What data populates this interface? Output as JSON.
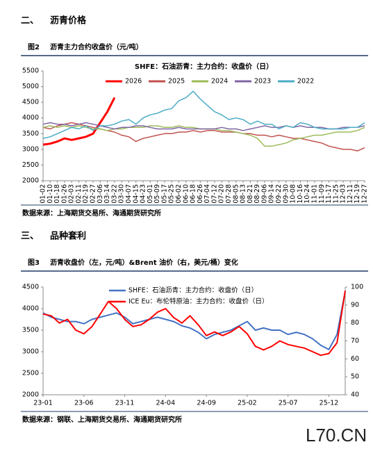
{
  "sections": [
    {
      "number": "二、",
      "title": "沥青价格",
      "figure_no": "图2",
      "figure_title": "沥青主力合约收盘价（元/吨）",
      "source": "数据来源：上海期货交易所、海通期货研究所"
    },
    {
      "number": "三、",
      "title": "品种套利",
      "figure_no": "图3",
      "figure_title": "沥青收盘价（左，元/吨）&Brent 油价（右，美元/桶）变化",
      "source": "数据来源：钢联、上海期货交易所、海通期货研究所"
    }
  ],
  "watermark": "L70.CN",
  "chart_data": [
    {
      "type": "line",
      "title": "SHFE：石油沥青：主力合约：收盘价（日）",
      "categories": [
        "01-02",
        "01-10",
        "01-18",
        "01-26",
        "02-03",
        "02-11",
        "02-19",
        "02-27",
        "03-06",
        "03-14",
        "03-22",
        "03-30",
        "04-07",
        "04-15",
        "04-23",
        "05-01",
        "05-09",
        "05-17",
        "05-25",
        "06-02",
        "06-10",
        "06-18",
        "06-26",
        "07-04",
        "07-12",
        "07-20",
        "07-28",
        "08-05",
        "08-13",
        "08-21",
        "08-29",
        "09-06",
        "09-14",
        "09-22",
        "09-30",
        "10-08",
        "10-16",
        "10-24",
        "11-01",
        "11-09",
        "11-17",
        "11-25",
        "12-03",
        "12-11",
        "12-19",
        "12-27"
      ],
      "ylim": [
        2000,
        5500
      ],
      "yticks": [
        2000,
        2500,
        3000,
        3500,
        4000,
        4500,
        5000,
        5500
      ],
      "legend": "top",
      "series": [
        {
          "name": "2026",
          "color": "#ff0000",
          "width": 3,
          "values": [
            3150,
            3180,
            3250,
            3350,
            3300,
            3350,
            3400,
            3500,
            3850,
            4200,
            4650,
            null,
            null,
            null,
            null,
            null,
            null,
            null,
            null,
            null,
            null,
            null,
            null,
            null,
            null,
            null,
            null,
            null,
            null,
            null,
            null,
            null,
            null,
            null,
            null,
            null,
            null,
            null,
            null,
            null,
            null,
            null,
            null,
            null,
            null,
            null
          ]
        },
        {
          "name": "2025",
          "color": "#c0504d",
          "width": 1.5,
          "values": [
            3700,
            3650,
            3750,
            3800,
            3850,
            3800,
            3750,
            3700,
            3650,
            3600,
            3550,
            3450,
            3400,
            3250,
            3350,
            3400,
            3450,
            3500,
            3500,
            3550,
            3550,
            3600,
            3550,
            3600,
            3600,
            3550,
            3550,
            3550,
            3500,
            3500,
            3450,
            3450,
            3400,
            3450,
            3400,
            3350,
            3350,
            3300,
            3250,
            3200,
            3100,
            3050,
            3000,
            3000,
            2950,
            3050
          ]
        },
        {
          "name": "2024",
          "color": "#9bbb59",
          "width": 1.5,
          "values": [
            3700,
            3750,
            3700,
            3750,
            3700,
            3750,
            3700,
            3650,
            3650,
            3600,
            3650,
            3650,
            3700,
            3700,
            3700,
            3750,
            3750,
            3700,
            3700,
            3750,
            3700,
            3700,
            3650,
            3650,
            3650,
            3600,
            3600,
            3550,
            3500,
            3450,
            3350,
            3100,
            3100,
            3150,
            3200,
            3300,
            3350,
            3400,
            3450,
            3450,
            3500,
            3550,
            3550,
            3550,
            3600,
            3700
          ]
        },
        {
          "name": "2023",
          "color": "#8064a2",
          "width": 1.5,
          "values": [
            3800,
            3850,
            3800,
            3800,
            3750,
            3800,
            3850,
            3800,
            3750,
            3700,
            3650,
            3700,
            3700,
            3750,
            3750,
            3700,
            3650,
            3650,
            3650,
            3700,
            3650,
            3650,
            3650,
            3650,
            3650,
            3700,
            3650,
            3650,
            3600,
            3650,
            3700,
            3750,
            3700,
            3700,
            3750,
            3700,
            3750,
            3700,
            3700,
            3700,
            3650,
            3650,
            3700,
            3700,
            3700,
            3750
          ]
        },
        {
          "name": "2022",
          "color": "#4bacc6",
          "width": 1.5,
          "values": [
            3350,
            3400,
            3500,
            3600,
            3700,
            3650,
            3750,
            3600,
            3750,
            3750,
            3800,
            3900,
            3950,
            3800,
            4000,
            4100,
            4150,
            4250,
            4300,
            4550,
            4650,
            4850,
            4600,
            4400,
            4200,
            4100,
            3950,
            4000,
            3950,
            3800,
            3900,
            3800,
            3800,
            3650,
            3750,
            3700,
            3850,
            3800,
            3700,
            3650,
            3650,
            3650,
            3650,
            3700,
            3700,
            3850
          ]
        }
      ]
    },
    {
      "type": "line",
      "categories": [
        "23-01",
        null,
        null,
        null,
        null,
        "23-06",
        null,
        null,
        null,
        null,
        "23-11",
        null,
        null,
        null,
        null,
        "24-04",
        null,
        null,
        null,
        null,
        "24-09",
        null,
        null,
        null,
        null,
        "25-02",
        null,
        null,
        null,
        null,
        "25-07",
        null,
        null,
        null,
        null,
        "25-12",
        null,
        null
      ],
      "ylim": [
        2000,
        4500
      ],
      "yticks": [
        2000,
        2500,
        3000,
        3500,
        4000,
        4500
      ],
      "y2lim": [
        40,
        100
      ],
      "y2ticks": [
        40,
        50,
        60,
        70,
        80,
        90,
        100
      ],
      "legend": "top-left",
      "series": [
        {
          "name": "SHFE：石油沥青：主力合约：收盘价（日）",
          "color": "#4472c4",
          "width": 2,
          "values": [
            3900,
            3800,
            3750,
            3700,
            3700,
            3650,
            3750,
            3800,
            3850,
            3900,
            3800,
            3650,
            3700,
            3750,
            3800,
            3750,
            3700,
            3600,
            3550,
            3450,
            3300,
            3400,
            3450,
            3500,
            3600,
            3700,
            3500,
            3550,
            3500,
            3500,
            3400,
            3450,
            3400,
            3300,
            3150,
            3050,
            3400,
            4400
          ]
        },
        {
          "name": "ICE Eu：布伦特原油：主力合约：收盘价（日）",
          "color": "#ff0000",
          "width": 2,
          "axis": "y2",
          "values": [
            85,
            84,
            80,
            82,
            76,
            74,
            78,
            85,
            92,
            88,
            82,
            78,
            79,
            82,
            86,
            88,
            83,
            80,
            84,
            79,
            73,
            75,
            73,
            75,
            78,
            74,
            67,
            65,
            67,
            70,
            68,
            67,
            66,
            64,
            62,
            63,
            69,
            98
          ]
        }
      ]
    }
  ]
}
